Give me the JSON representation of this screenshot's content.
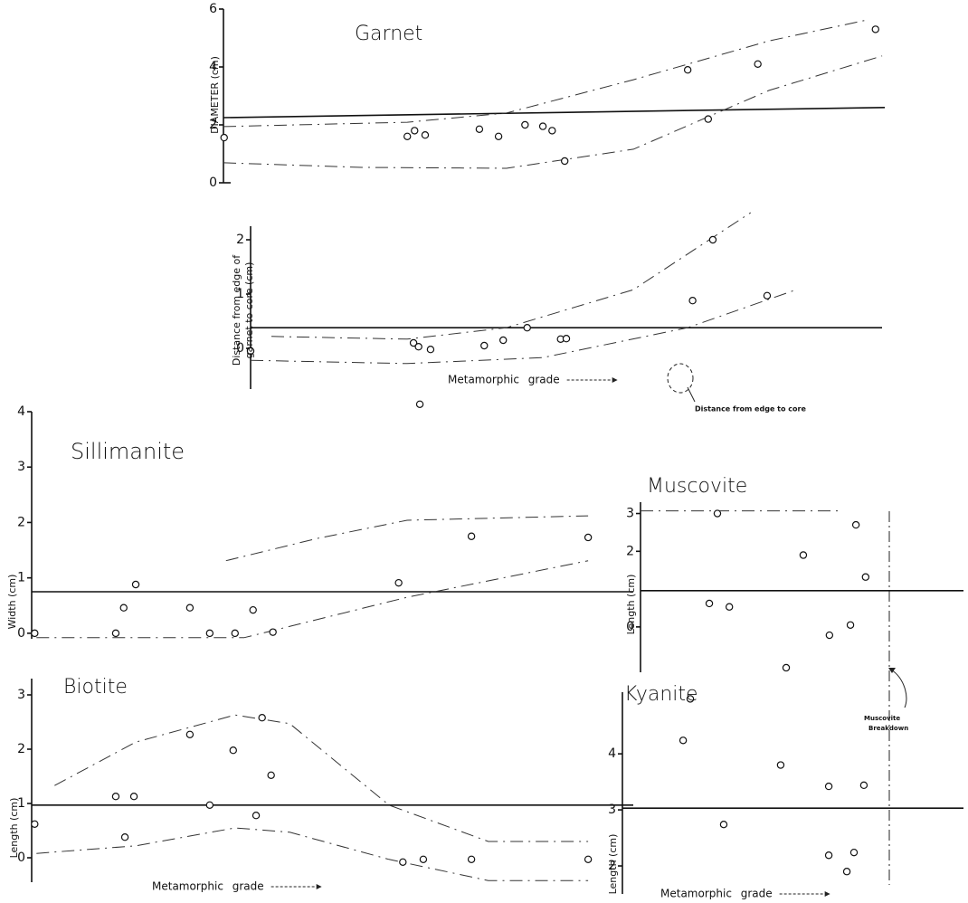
{
  "chart_data": [
    {
      "type": "scatter",
      "title": "Garnet",
      "ylabel": [
        "DIAMETER (cm)"
      ],
      "x": [
        0.1,
        27.8,
        28.9,
        30.5,
        38.7,
        41.6,
        45.6,
        48.3,
        49.7,
        51.6,
        70.2,
        73.3,
        80.8,
        98.6
      ],
      "values": [
        1.56,
        1.6,
        1.8,
        1.65,
        1.85,
        1.6,
        2.0,
        1.95,
        1.8,
        0.75,
        3.9,
        2.2,
        4.1,
        5.3
      ],
      "xlim": [
        0,
        100
      ],
      "ylim": [
        0,
        6
      ],
      "yticks": [
        0,
        2,
        4,
        6
      ],
      "fits": [
        {
          "style": "solid",
          "x": [
            0,
            100
          ],
          "values": [
            2.25,
            2.6
          ]
        },
        {
          "style": "dashed",
          "x": [
            0,
            27.8,
            42.8,
            62,
            82.5,
            97.5
          ],
          "values": [
            1.94,
            2.09,
            2.41,
            3.56,
            4.9,
            5.63
          ]
        },
        {
          "style": "dashed",
          "x": [
            0,
            20.9,
            42.8,
            62,
            82.5,
            99.6
          ],
          "values": [
            0.69,
            0.53,
            0.5,
            1.16,
            3.19,
            4.38
          ]
        }
      ]
    },
    {
      "type": "scatter",
      "ylabel": [
        "Distance from edge of",
        "garnet to core (cm)"
      ],
      "xlabel": "Metamorphic grade",
      "annotations": [
        "Distance from edge to core"
      ],
      "x": [
        0,
        25.8,
        26.6,
        28.5,
        37,
        40,
        43.8,
        49.1,
        50,
        26.8,
        70,
        73.2,
        81.8
      ],
      "values": [
        -0.05,
        0.1,
        0.03,
        -0.02,
        0.05,
        0.15,
        0.38,
        0.17,
        0.18,
        -1.03,
        0.88,
        2.0,
        0.97
      ],
      "xlim": [
        0,
        100
      ],
      "ylim": [
        -0.75,
        2.25
      ],
      "yticks": [
        0,
        1,
        2
      ],
      "fits": [
        {
          "style": "solid",
          "x": [
            0,
            100
          ],
          "values": [
            0.38,
            0.38
          ]
        },
        {
          "style": "dashed",
          "x": [
            3.3,
            24.8,
            40.5,
            60.6,
            79.2
          ],
          "values": [
            0.22,
            0.17,
            0.38,
            1.08,
            2.5
          ]
        },
        {
          "style": "dashed",
          "x": [
            0,
            24.8,
            46.3,
            69.2,
            86.4
          ],
          "values": [
            -0.22,
            -0.28,
            -0.17,
            0.38,
            1.08
          ]
        }
      ]
    },
    {
      "type": "scatter",
      "title": "Sillimanite",
      "ylabel": [
        "Width (cm)"
      ],
      "x": [
        0.5,
        13.98,
        17.3,
        15.3,
        26.3,
        29.6,
        33.8,
        36.8,
        40.1,
        61,
        73.1,
        92.5
      ],
      "values": [
        0,
        0,
        0.88,
        0.46,
        0.46,
        0,
        0,
        0.42,
        0.02,
        0.91,
        1.75,
        1.73
      ],
      "xlim": [
        0,
        100
      ],
      "ylim": [
        -0.1,
        4
      ],
      "yticks": [
        0,
        1,
        2,
        3,
        4
      ],
      "fits": [
        {
          "style": "solid",
          "x": [
            0,
            100
          ],
          "values": [
            0.75,
            0.75
          ]
        },
        {
          "style": "dashed",
          "x": [
            32.3,
            47.4,
            62.4,
            92.5
          ],
          "values": [
            1.31,
            1.71,
            2.04,
            2.12
          ]
        },
        {
          "style": "dashed",
          "x": [
            0.8,
            35.3,
            62.4,
            92.5
          ],
          "values": [
            -0.08,
            -0.08,
            0.65,
            1.31
          ]
        }
      ]
    },
    {
      "type": "scatter",
      "title": "Muscovite",
      "ylabel": [
        "Length (cm)"
      ],
      "annotations": [
        "Muscovite",
        "Breakdown"
      ],
      "x": [
        23.8,
        66.7,
        50.4,
        69.7,
        21.3,
        27.5,
        58.5,
        65,
        45.1
      ],
      "values": [
        3.0,
        2.7,
        1.9,
        1.32,
        0.62,
        0.53,
        -0.22,
        0.05,
        -1.08
      ],
      "xlim": [
        0,
        100
      ],
      "ylim": [
        -1.2,
        3.3
      ],
      "yticks": [
        0,
        2,
        3
      ],
      "fits": [
        {
          "style": "solid",
          "x": [
            0,
            100
          ],
          "values": [
            0.96,
            0.96
          ]
        },
        {
          "style": "dashed",
          "x": [
            0,
            62
          ],
          "values": [
            3.07,
            3.07
          ]
        }
      ]
    },
    {
      "type": "scatter",
      "title": "Biotite",
      "ylabel": [
        "Length (cm)"
      ],
      "xlabel": "Metamorphic grade",
      "x": [
        0.5,
        13.98,
        17,
        15.5,
        26.3,
        29.6,
        33.5,
        38.3,
        39.8,
        37.3,
        61.7,
        65.1,
        73.1,
        92.5
      ],
      "values": [
        0.62,
        1.13,
        1.13,
        0.38,
        2.27,
        0.97,
        1.98,
        2.58,
        1.52,
        0.78,
        -0.08,
        -0.03,
        -0.03,
        -0.03
      ],
      "xlim": [
        0,
        100
      ],
      "ylim": [
        -0.45,
        3.3
      ],
      "yticks": [
        0,
        1,
        2,
        3
      ],
      "fits": [
        {
          "style": "solid",
          "x": [
            0,
            100
          ],
          "values": [
            0.97,
            0.97
          ]
        },
        {
          "style": "dashed",
          "x": [
            3.8,
            17.3,
            33.8,
            42.9,
            59.4,
            75.9,
            92.5
          ],
          "values": [
            1.33,
            2.13,
            2.63,
            2.47,
            0.97,
            0.3,
            0.3
          ]
        },
        {
          "style": "dashed",
          "x": [
            0.8,
            17.3,
            33.8,
            42.9,
            59.4,
            75.9,
            92.5
          ],
          "values": [
            0.08,
            0.22,
            0.55,
            0.47,
            -0.03,
            -0.42,
            -0.42
          ]
        }
      ]
    },
    {
      "type": "scatter",
      "title": "Kyanite",
      "ylabel": [
        "Length (cm)"
      ],
      "xlabel": "Metamorphic grade",
      "x": [
        19.9,
        17.8,
        46.4,
        60.5,
        70.8,
        29.7,
        60.5,
        67.9,
        65.8
      ],
      "values": [
        4.98,
        4.24,
        3.8,
        3.42,
        3.44,
        2.74,
        2.19,
        2.24,
        1.9
      ],
      "xlim": [
        0,
        100
      ],
      "ylim": [
        1.5,
        5.1
      ],
      "yticks": [
        2,
        3,
        4
      ],
      "fits": [
        {
          "style": "solid",
          "x": [
            0,
            100
          ],
          "values": [
            3.03,
            3.03
          ]
        }
      ]
    }
  ]
}
